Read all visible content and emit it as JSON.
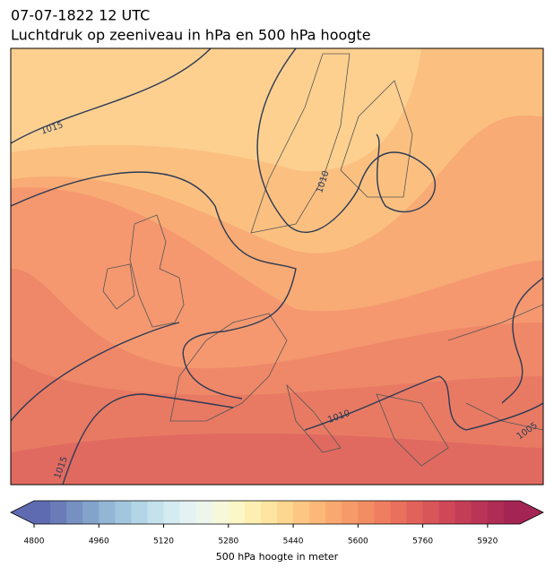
{
  "title": [
    "07-07-1822 12 UTC",
    "Luchtdruk op zeeniveau in hPa en 500 hPa hoogte"
  ],
  "contour_labels": [
    1015,
    1010,
    1010,
    1005,
    1015
  ],
  "colorbar": {
    "label": "500 hPa hoogte in meter",
    "ticks": [
      4800,
      4960,
      5120,
      5280,
      5440,
      5600,
      5760,
      5920
    ],
    "range": [
      4800,
      6000
    ],
    "colors": [
      "#5e6bb0",
      "#6a7cb8",
      "#7790c2",
      "#84a3cb",
      "#93b6d5",
      "#a2c6dd",
      "#b3d5e5",
      "#c4e1ec",
      "#d5ebf2",
      "#e4f2f3",
      "#eef6ec",
      "#f6f8dc",
      "#fcf7c6",
      "#fdefb2",
      "#fde4a0",
      "#fdd690",
      "#fcc683",
      "#fbb878",
      "#f9a870",
      "#f69a69",
      "#f28c63",
      "#ee7e5f",
      "#e8705c",
      "#e1625a",
      "#d85559",
      "#cf4858",
      "#c43d57",
      "#b93456",
      "#ae2c55",
      "#a42554"
    ]
  }
}
